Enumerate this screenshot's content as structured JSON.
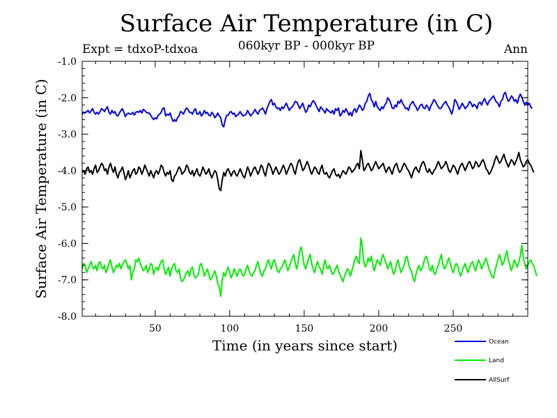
{
  "header": {
    "title": "Surface Air Temperature (in C)",
    "subtitle": "060kyr BP - 000kyr BP",
    "experiment": "Expt = tdxoP-tdxoa",
    "season": "Ann"
  },
  "chart_data": {
    "type": "line",
    "xlabel": "Time (in years since start)",
    "ylabel": "Surface Air Temperature (in C)",
    "xlim": [
      1,
      300
    ],
    "ylim": [
      -8.0,
      -1.0
    ],
    "xticks": [
      50,
      100,
      150,
      200,
      250
    ],
    "yticks": [
      -8.0,
      -7.0,
      -6.0,
      -5.0,
      -4.0,
      -3.0,
      -2.0,
      -1.0
    ],
    "ytick_labels": [
      "-8.0",
      "-7.0",
      "-6.0",
      "-5.0",
      "-4.0",
      "-3.0",
      "-2.0",
      "-1.0"
    ],
    "grid": false,
    "legend_position": "bottom-right, below plot",
    "series": [
      {
        "name": "Ocean",
        "color": "#0000dd",
        "values": [
          -2.45,
          -2.4,
          -2.42,
          -2.38,
          -2.35,
          -2.42,
          -2.36,
          -2.3,
          -2.4,
          -2.45,
          -2.4,
          -2.45,
          -2.38,
          -2.3,
          -2.33,
          -2.38,
          -2.3,
          -2.25,
          -2.4,
          -2.45,
          -2.35,
          -2.42,
          -2.38,
          -2.48,
          -2.5,
          -2.42,
          -2.35,
          -2.3,
          -2.4,
          -2.52,
          -2.45,
          -2.42,
          -2.45,
          -2.45,
          -2.4,
          -2.48,
          -2.4,
          -2.38,
          -2.4,
          -2.35,
          -2.42,
          -2.32,
          -2.35,
          -2.4,
          -2.42,
          -2.42,
          -2.48,
          -2.55,
          -2.6,
          -2.55,
          -2.58,
          -2.48,
          -2.45,
          -2.4,
          -2.3,
          -2.28,
          -2.5,
          -2.45,
          -2.48,
          -2.42,
          -2.55,
          -2.65,
          -2.6,
          -2.65,
          -2.55,
          -2.5,
          -2.38,
          -2.4,
          -2.45,
          -2.35,
          -2.28,
          -2.32,
          -2.4,
          -2.4,
          -2.45,
          -2.35,
          -2.3,
          -2.45,
          -2.45,
          -2.38,
          -2.5,
          -2.45,
          -2.35,
          -2.43,
          -2.4,
          -2.48,
          -2.5,
          -2.4,
          -2.45,
          -2.55,
          -2.5,
          -2.42,
          -2.5,
          -2.55,
          -2.75,
          -2.8,
          -2.6,
          -2.48,
          -2.48,
          -2.4,
          -2.38,
          -2.45,
          -2.42,
          -2.52,
          -2.48,
          -2.45,
          -2.38,
          -2.45,
          -2.5,
          -2.48,
          -2.45,
          -2.35,
          -2.42,
          -2.5,
          -2.45,
          -2.4,
          -2.32,
          -2.4,
          -2.45,
          -2.35,
          -2.32,
          -2.28,
          -2.35,
          -2.45,
          -2.3,
          -2.2,
          -2.1,
          -2.05,
          -2.2,
          -2.15,
          -2.25,
          -2.3,
          -2.28,
          -2.35,
          -2.25,
          -2.3,
          -2.22,
          -2.15,
          -2.25,
          -2.35,
          -2.28,
          -2.25,
          -2.18,
          -2.1,
          -2.12,
          -2.2,
          -2.3,
          -2.22,
          -2.15,
          -2.28,
          -2.4,
          -2.35,
          -2.2,
          -2.25,
          -2.15,
          -2.08,
          -2.12,
          -2.22,
          -2.3,
          -2.38,
          -2.25,
          -2.3,
          -2.35,
          -2.42,
          -2.3,
          -2.35,
          -2.38,
          -2.42,
          -2.35,
          -2.45,
          -2.3,
          -2.35,
          -2.28,
          -2.5,
          -2.45,
          -2.35,
          -2.4,
          -2.3,
          -2.38,
          -2.48,
          -2.4,
          -2.5,
          -2.35,
          -2.3,
          -2.4,
          -2.3,
          -2.2,
          -2.25,
          -2.35,
          -2.3,
          -2.15,
          -2.1,
          -1.95,
          -1.88,
          -2.05,
          -2.12,
          -2.25,
          -2.1,
          -2.25,
          -2.3,
          -2.35,
          -2.25,
          -2.3,
          -2.2,
          -2.15,
          -2.0,
          -2.05,
          -2.15,
          -2.28,
          -2.3,
          -2.2,
          -2.25,
          -2.1,
          -2.15,
          -2.05,
          -2.15,
          -2.22,
          -2.3,
          -2.28,
          -2.35,
          -2.2,
          -2.15,
          -2.1,
          -2.2,
          -2.25,
          -2.35,
          -2.28,
          -2.2,
          -2.18,
          -2.28,
          -2.3,
          -2.2,
          -2.25,
          -2.35,
          -2.22,
          -2.15,
          -2.05,
          -2.1,
          -2.18,
          -2.25,
          -2.3,
          -2.28,
          -2.2,
          -2.15,
          -2.1,
          -2.2,
          -2.25,
          -2.35,
          -2.45,
          -2.3,
          -2.05,
          -2.1,
          -2.2,
          -2.32,
          -2.25,
          -2.15,
          -2.22,
          -2.3,
          -2.25,
          -2.2,
          -2.1,
          -2.15,
          -2.25,
          -2.18,
          -2.22,
          -2.3,
          -2.15,
          -2.12,
          -2.2,
          -2.1,
          -2.02,
          -2.12,
          -2.2,
          -2.1,
          -2.05,
          -2.0,
          -1.95,
          -2.05,
          -2.12,
          -2.15,
          -2.25,
          -2.1,
          -2.05,
          -1.9,
          -1.85,
          -2.0,
          -2.1,
          -2.05,
          -1.95,
          -2.0,
          -2.1,
          -2.05,
          -2.15,
          -2.0,
          -1.9,
          -1.98,
          -2.1,
          -2.2,
          -2.12,
          -2.2,
          -2.15,
          -2.25,
          -2.3
        ]
      },
      {
        "name": "Land",
        "color": "#00ee00",
        "values": [
          -6.7,
          -6.55,
          -6.6,
          -6.8,
          -6.7,
          -6.6,
          -6.5,
          -6.65,
          -6.7,
          -6.6,
          -6.75,
          -6.55,
          -6.5,
          -6.65,
          -6.7,
          -6.6,
          -6.8,
          -6.7,
          -6.55,
          -6.45,
          -6.65,
          -6.8,
          -6.7,
          -6.6,
          -6.65,
          -6.55,
          -6.7,
          -6.6,
          -6.5,
          -6.45,
          -6.55,
          -6.7,
          -6.6,
          -7.0,
          -6.8,
          -6.7,
          -6.45,
          -6.5,
          -6.4,
          -6.55,
          -6.65,
          -6.75,
          -6.7,
          -6.6,
          -6.8,
          -6.7,
          -6.55,
          -6.6,
          -6.85,
          -6.7,
          -6.65,
          -6.75,
          -6.6,
          -6.5,
          -6.45,
          -6.7,
          -6.85,
          -6.75,
          -6.65,
          -6.9,
          -6.7,
          -6.6,
          -6.55,
          -6.75,
          -6.8,
          -6.7,
          -6.95,
          -7.05,
          -7.0,
          -6.9,
          -6.8,
          -6.75,
          -6.9,
          -6.7,
          -6.65,
          -6.85,
          -6.95,
          -6.9,
          -6.85,
          -6.6,
          -6.55,
          -6.7,
          -6.9,
          -6.8,
          -6.7,
          -6.85,
          -7.0,
          -6.95,
          -6.85,
          -6.75,
          -6.9,
          -7.1,
          -7.2,
          -7.45,
          -7.0,
          -6.8,
          -6.9,
          -6.75,
          -6.65,
          -6.8,
          -6.95,
          -6.85,
          -6.7,
          -6.8,
          -6.9,
          -6.75,
          -6.7,
          -6.8,
          -6.9,
          -6.85,
          -6.7,
          -6.6,
          -6.75,
          -6.85,
          -6.9,
          -6.8,
          -6.75,
          -6.6,
          -6.5,
          -6.7,
          -6.85,
          -6.9,
          -6.75,
          -6.7,
          -6.55,
          -6.45,
          -6.6,
          -6.7,
          -6.5,
          -6.45,
          -6.6,
          -6.75,
          -6.8,
          -6.7,
          -6.65,
          -6.55,
          -6.45,
          -6.6,
          -6.75,
          -6.65,
          -6.5,
          -6.4,
          -6.3,
          -6.55,
          -6.7,
          -6.5,
          -6.2,
          -6.1,
          -6.35,
          -6.6,
          -6.7,
          -6.55,
          -6.4,
          -6.3,
          -6.55,
          -6.7,
          -6.8,
          -6.6,
          -6.5,
          -6.65,
          -6.7,
          -6.85,
          -6.6,
          -6.45,
          -6.65,
          -6.7,
          -6.6,
          -6.75,
          -6.85,
          -6.8,
          -6.7,
          -6.6,
          -6.75,
          -6.85,
          -6.95,
          -7.05,
          -6.9,
          -6.8,
          -6.7,
          -6.75,
          -6.9,
          -6.75,
          -6.6,
          -6.45,
          -6.35,
          -6.5,
          -6.55,
          -5.85,
          -6.1,
          -6.5,
          -6.65,
          -6.55,
          -6.4,
          -6.5,
          -6.35,
          -6.6,
          -6.75,
          -6.6,
          -6.45,
          -6.5,
          -6.6,
          -6.4,
          -6.3,
          -6.45,
          -6.55,
          -6.7,
          -6.6,
          -6.5,
          -6.7,
          -6.85,
          -6.75,
          -6.55,
          -6.45,
          -6.65,
          -6.8,
          -6.7,
          -6.6,
          -6.4,
          -6.35,
          -6.55,
          -6.7,
          -6.75,
          -6.95,
          -7.05,
          -6.85,
          -6.7,
          -6.6,
          -6.75,
          -6.7,
          -6.55,
          -6.4,
          -6.35,
          -6.5,
          -6.7,
          -6.75,
          -6.6,
          -6.8,
          -6.85,
          -6.7,
          -6.6,
          -6.45,
          -6.3,
          -6.55,
          -6.7,
          -6.65,
          -6.5,
          -6.4,
          -6.55,
          -6.7,
          -6.8,
          -6.65,
          -6.55,
          -6.6,
          -6.8,
          -6.9,
          -6.75,
          -6.65,
          -6.55,
          -6.7,
          -6.8,
          -6.65,
          -6.55,
          -6.5,
          -6.65,
          -6.75,
          -6.6,
          -6.45,
          -6.55,
          -6.7,
          -6.6,
          -6.5,
          -6.4,
          -6.55,
          -6.7,
          -6.8,
          -6.9,
          -6.95,
          -6.75,
          -6.6,
          -6.45,
          -6.3,
          -6.45,
          -6.6,
          -6.5,
          -6.35,
          -6.2,
          -6.45,
          -6.6,
          -6.75,
          -6.6,
          -6.45,
          -6.55,
          -6.65,
          -6.5,
          -6.35,
          -6.05,
          -6.4,
          -6.55,
          -6.7,
          -6.6,
          -6.5,
          -6.45,
          -6.55,
          -6.6,
          -6.75,
          -6.9
        ]
      },
      {
        "name": "AllSurf",
        "color": "#000000",
        "values": [
          -4.05,
          -4.0,
          -4.1,
          -3.95,
          -3.9,
          -4.05,
          -4.0,
          -4.1,
          -3.95,
          -3.85,
          -4.05,
          -4.0,
          -3.9,
          -3.8,
          -3.85,
          -4.0,
          -3.95,
          -4.1,
          -3.9,
          -3.8,
          -3.95,
          -4.05,
          -3.9,
          -4.1,
          -4.2,
          -4.05,
          -4.0,
          -3.9,
          -4.05,
          -4.25,
          -4.15,
          -4.0,
          -4.2,
          -4.1,
          -4.0,
          -3.95,
          -4.1,
          -4.05,
          -3.9,
          -3.95,
          -4.1,
          -4.0,
          -3.85,
          -3.95,
          -4.05,
          -4.15,
          -4.0,
          -4.1,
          -4.2,
          -4.05,
          -4.0,
          -4.1,
          -4.0,
          -3.85,
          -3.9,
          -4.05,
          -4.15,
          -4.05,
          -4.1,
          -4.0,
          -4.25,
          -4.3,
          -4.15,
          -4.1,
          -4.0,
          -3.9,
          -3.95,
          -4.1,
          -4.05,
          -4.0,
          -3.85,
          -3.9,
          -4.05,
          -4.1,
          -4.0,
          -4.15,
          -4.05,
          -3.95,
          -4.1,
          -4.15,
          -4.05,
          -3.9,
          -4.0,
          -4.1,
          -4.05,
          -3.95,
          -4.1,
          -4.2,
          -4.1,
          -4.0,
          -4.05,
          -4.25,
          -4.5,
          -4.55,
          -4.25,
          -4.05,
          -4.15,
          -4.0,
          -3.95,
          -4.05,
          -4.15,
          -4.05,
          -4.0,
          -4.1,
          -4.15,
          -4.05,
          -3.95,
          -4.05,
          -4.15,
          -4.2,
          -4.05,
          -3.9,
          -4.0,
          -4.15,
          -4.05,
          -3.95,
          -3.9,
          -4.0,
          -4.1,
          -4.0,
          -3.85,
          -3.9,
          -4.05,
          -4.15,
          -3.95,
          -3.8,
          -3.85,
          -3.95,
          -4.1,
          -4.0,
          -3.9,
          -4.0,
          -4.1,
          -4.05,
          -3.95,
          -3.85,
          -3.95,
          -4.1,
          -4.0,
          -3.9,
          -3.8,
          -3.85,
          -4.0,
          -4.1,
          -3.9,
          -3.75,
          -3.7,
          -3.85,
          -4.0,
          -3.95,
          -3.85,
          -3.75,
          -3.85,
          -4.0,
          -4.1,
          -4.0,
          -3.9,
          -3.95,
          -4.05,
          -4.1,
          -3.95,
          -3.85,
          -4.05,
          -4.1,
          -4.05,
          -4.15,
          -4.2,
          -4.1,
          -4.0,
          -3.95,
          -4.1,
          -4.15,
          -4.1,
          -4.2,
          -4.1,
          -4.0,
          -4.05,
          -4.1,
          -4.0,
          -3.9,
          -3.95,
          -4.05,
          -4.0,
          -3.95,
          -3.85,
          -3.8,
          -3.95,
          -3.45,
          -3.7,
          -4.0,
          -3.95,
          -3.85,
          -3.8,
          -3.9,
          -4.0,
          -3.95,
          -3.85,
          -3.75,
          -3.85,
          -3.95,
          -3.9,
          -3.85,
          -3.8,
          -3.95,
          -4.05,
          -3.95,
          -3.9,
          -4.0,
          -4.1,
          -3.95,
          -3.85,
          -3.8,
          -3.95,
          -4.05,
          -4.0,
          -3.9,
          -3.8,
          -3.85,
          -3.95,
          -4.0,
          -4.1,
          -4.2,
          -4.05,
          -3.95,
          -3.9,
          -4.0,
          -4.05,
          -3.9,
          -3.8,
          -3.75,
          -3.85,
          -4.0,
          -4.05,
          -3.95,
          -4.05,
          -4.1,
          -4.0,
          -3.95,
          -3.85,
          -3.75,
          -3.85,
          -3.95,
          -3.9,
          -3.85,
          -3.75,
          -3.85,
          -4.0,
          -4.05,
          -3.95,
          -3.85,
          -3.9,
          -4.0,
          -4.1,
          -3.95,
          -3.85,
          -3.8,
          -3.9,
          -4.0,
          -3.9,
          -3.8,
          -3.75,
          -3.85,
          -3.95,
          -3.9,
          -3.75,
          -3.8,
          -3.9,
          -3.85,
          -3.75,
          -3.7,
          -3.8,
          -3.95,
          -4.0,
          -4.1,
          -4.05,
          -3.95,
          -3.85,
          -3.7,
          -3.6,
          -3.7,
          -3.8,
          -3.75,
          -3.65,
          -3.55,
          -3.7,
          -3.8,
          -3.9,
          -3.8,
          -3.7,
          -3.75,
          -3.85,
          -3.75,
          -3.65,
          -3.5,
          -3.7,
          -3.8,
          -3.9,
          -3.85,
          -3.75,
          -3.7,
          -3.8,
          -3.85,
          -3.95,
          -4.05
        ]
      }
    ]
  }
}
